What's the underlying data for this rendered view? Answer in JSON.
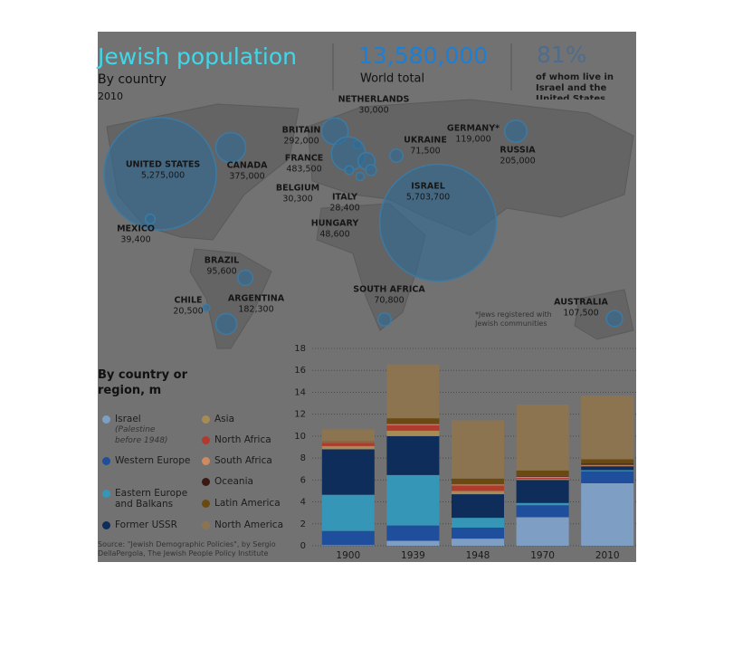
{
  "chart_data": [
    {
      "type": "bubble",
      "title": "Jewish population",
      "subtitle": "By country",
      "year": "2010",
      "total": "13,580,000",
      "total_label": "World total",
      "share": "81%",
      "share_label": "of whom live in Israel and the United States",
      "footnote": "*Jews registered with Jewish communities",
      "color": "#2f6a94",
      "points": [
        {
          "name": "UNITED STATES",
          "value": 5275000,
          "value_label": "5,275,000"
        },
        {
          "name": "CANADA",
          "value": 375000,
          "value_label": "375,000"
        },
        {
          "name": "MEXICO",
          "value": 39400,
          "value_label": "39,400"
        },
        {
          "name": "BRAZIL",
          "value": 95600,
          "value_label": "95,600"
        },
        {
          "name": "CHILE",
          "value": 20500,
          "value_label": "20,500"
        },
        {
          "name": "ARGENTINA",
          "value": 182300,
          "value_label": "182,300"
        },
        {
          "name": "BRITAIN",
          "value": 292000,
          "value_label": "292,000"
        },
        {
          "name": "NETHERLANDS",
          "value": 30000,
          "value_label": "30,000"
        },
        {
          "name": "FRANCE",
          "value": 483500,
          "value_label": "483,500"
        },
        {
          "name": "BELGIUM",
          "value": 30300,
          "value_label": "30,300"
        },
        {
          "name": "GERMANY*",
          "value": 119000,
          "value_label": "119,000"
        },
        {
          "name": "UKRAINE",
          "value": 71500,
          "value_label": "71,500"
        },
        {
          "name": "ITALY",
          "value": 28400,
          "value_label": "28,400"
        },
        {
          "name": "HUNGARY",
          "value": 48600,
          "value_label": "48,600"
        },
        {
          "name": "ISRAEL",
          "value": 5703700,
          "value_label": "5,703,700"
        },
        {
          "name": "RUSSIA",
          "value": 205000,
          "value_label": "205,000"
        },
        {
          "name": "SOUTH AFRICA",
          "value": 70800,
          "value_label": "70,800"
        },
        {
          "name": "AUSTRALIA",
          "value": 107500,
          "value_label": "107,500"
        }
      ]
    },
    {
      "type": "stacked-bar",
      "title": "By country or region, m",
      "source": "Source: \"Jewish Demographic Policies\", by Sergio DellaPergola, The Jewish People Policy Institute",
      "categories": [
        "1900",
        "1939",
        "1948",
        "1970",
        "2010"
      ],
      "ylim": [
        0,
        18
      ],
      "yticks": [
        0,
        2,
        4,
        6,
        8,
        10,
        12,
        14,
        16,
        18
      ],
      "grid": true,
      "series": [
        {
          "name": "Israel",
          "note": "(Palestine before 1948)",
          "color": "#7f9ec4",
          "values": [
            0.05,
            0.45,
            0.65,
            2.6,
            5.7
          ]
        },
        {
          "name": "Western Europe",
          "color": "#1f4e9c",
          "values": [
            1.3,
            1.4,
            1.0,
            1.1,
            1.1
          ]
        },
        {
          "name": "Eastern Europe and Balkans",
          "color": "#3596b8",
          "values": [
            3.3,
            4.6,
            0.9,
            0.2,
            0.1
          ]
        },
        {
          "name": "Former USSR",
          "color": "#0f2d5a",
          "values": [
            4.15,
            3.55,
            2.15,
            2.1,
            0.35
          ]
        },
        {
          "name": "Asia",
          "color": "#a88a55",
          "values": [
            0.3,
            0.5,
            0.3,
            0.1,
            0.05
          ]
        },
        {
          "name": "North Africa",
          "color": "#b03a2e",
          "values": [
            0.3,
            0.5,
            0.5,
            0.1,
            0.01
          ]
        },
        {
          "name": "South Africa",
          "color": "#d08a60",
          "values": [
            0.05,
            0.1,
            0.1,
            0.1,
            0.07
          ]
        },
        {
          "name": "Oceania",
          "color": "#3a1a12",
          "values": [
            0.02,
            0.03,
            0.03,
            0.07,
            0.11
          ]
        },
        {
          "name": "Latin America",
          "color": "#6a4a10",
          "values": [
            0.05,
            0.5,
            0.5,
            0.5,
            0.4
          ]
        },
        {
          "name": "North America",
          "color": "#8d7450",
          "values": [
            1.1,
            4.9,
            5.3,
            6.0,
            5.8
          ]
        }
      ]
    }
  ]
}
